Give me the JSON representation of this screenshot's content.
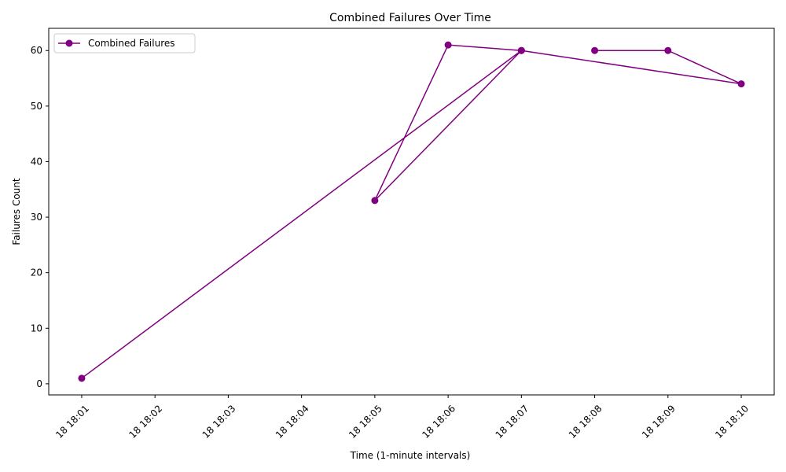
{
  "chart_data": {
    "type": "line",
    "title": "Combined Failures Over Time",
    "xlabel": "Time (1-minute intervals)",
    "ylabel": "Failures Count",
    "x_ticks": [
      "18 18:01",
      "18 18:02",
      "18 18:03",
      "18 18:04",
      "18 18:05",
      "18 18:06",
      "18 18:07",
      "18 18:08",
      "18 18:09",
      "18 18:10"
    ],
    "y_ticks": [
      0,
      10,
      20,
      30,
      40,
      50,
      60
    ],
    "xlim": [
      "18 18:00.55",
      "18 18:10.45"
    ],
    "ylim": [
      -2.0,
      64.0
    ],
    "grid": false,
    "legend_position": "top-left",
    "series": [
      {
        "name": "Combined Failures",
        "color": "#800080",
        "marker": "circle",
        "points": [
          {
            "x": "18 18:01",
            "y": 1
          },
          {
            "x": "18 18:07",
            "y": 60
          },
          {
            "x": "18 18:05",
            "y": 33
          },
          {
            "x": "18 18:06",
            "y": 61
          },
          {
            "x": "18 18:07",
            "y": 60
          },
          {
            "x": "18 18:10",
            "y": 54
          },
          {
            "x": "18 18:09",
            "y": 60
          },
          {
            "x": "18 18:08",
            "y": 60
          }
        ]
      }
    ]
  }
}
